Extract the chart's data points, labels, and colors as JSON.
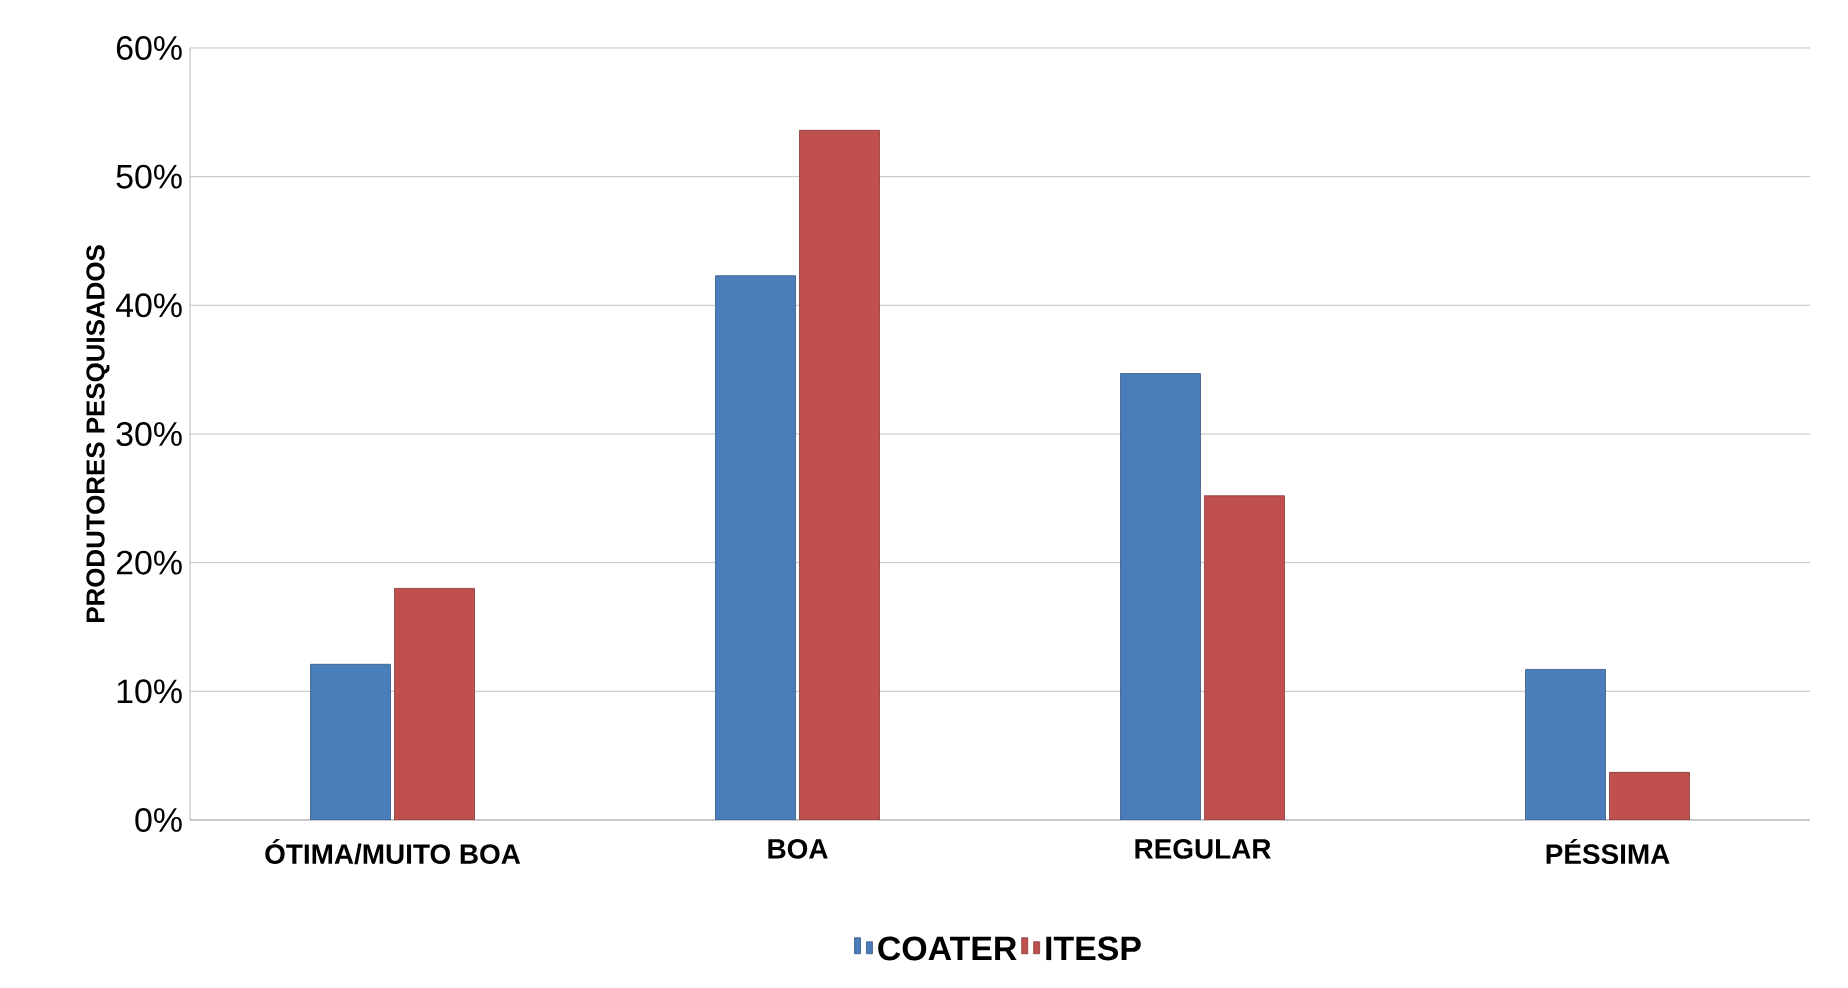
{
  "chart_data": {
    "type": "bar",
    "ylabel": "PRODUTORES PESQUISADOS",
    "categories": [
      "ÓTIMA/MUITO BOA",
      "BOA",
      "REGULAR",
      "PÉSSIMA"
    ],
    "series": [
      {
        "name": "COATER",
        "color": "#4a7ebb",
        "values": [
          12.1,
          42.3,
          34.7,
          11.7
        ]
      },
      {
        "name": "ITESP",
        "color": "#c0504d",
        "values": [
          18.0,
          53.6,
          25.2,
          3.7
        ]
      }
    ],
    "ylim": [
      0,
      60
    ],
    "yticks": [
      {
        "value": 0,
        "label": "0%"
      },
      {
        "value": 10,
        "label": "10%"
      },
      {
        "value": 20,
        "label": "20%"
      },
      {
        "value": 30,
        "label": "30%"
      },
      {
        "value": 40,
        "label": "40%"
      },
      {
        "value": 50,
        "label": "50%"
      },
      {
        "value": 60,
        "label": "60%"
      }
    ],
    "grid": "y",
    "legend": "bottom"
  }
}
